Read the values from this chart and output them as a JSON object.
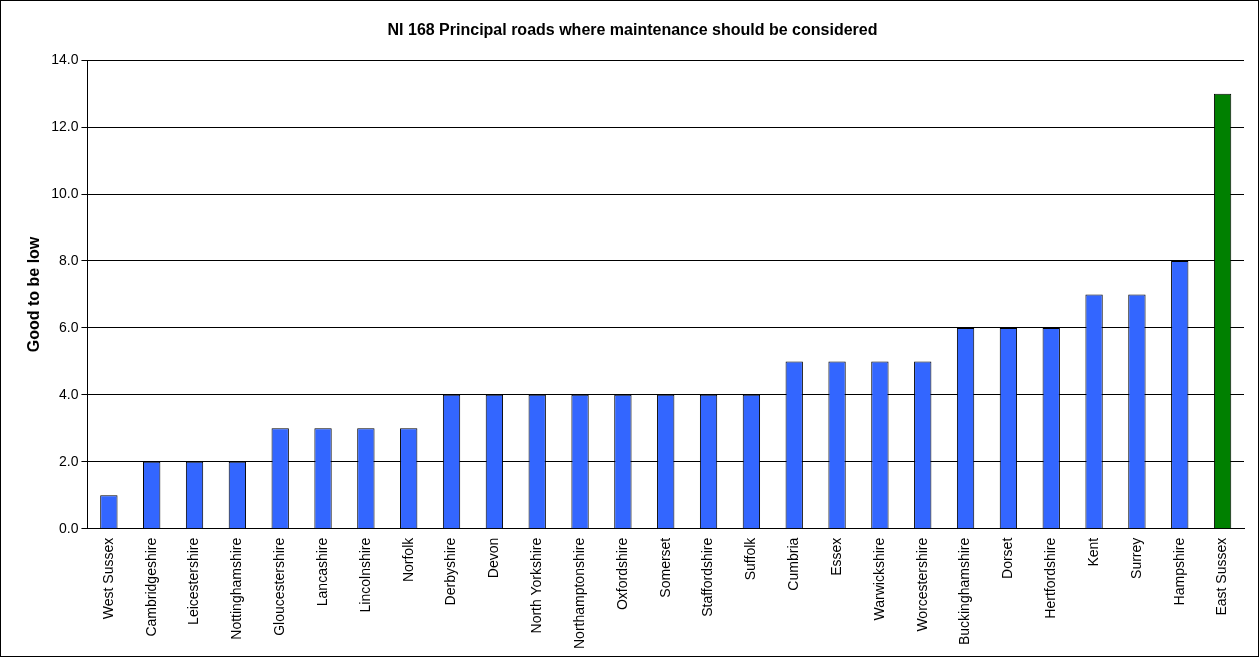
{
  "chart_data": {
    "type": "bar",
    "title": "NI 168 Principal roads where maintenance should be considered",
    "ylabel": "Good to be low",
    "categories": [
      "West Sussex",
      "Cambridgeshire",
      "Leicestershire",
      "Nottinghamshire",
      "Gloucestershire",
      "Lancashire",
      "Lincolnshire",
      "Norfolk",
      "Derbyshire",
      "Devon",
      "North Yorkshire",
      "Northamptonshire",
      "Oxfordshire",
      "Somerset",
      "Staffordshire",
      "Suffolk",
      "Cumbria",
      "Essex",
      "Warwickshire",
      "Worcestershire",
      "Buckinghamshire",
      "Dorset",
      "Hertfordshire",
      "Kent",
      "Surrey",
      "Hampshire",
      "East Sussex"
    ],
    "values": [
      1,
      2,
      2,
      2,
      3,
      3,
      3,
      3,
      4,
      4,
      4,
      4,
      4,
      4,
      4,
      4,
      5,
      5,
      5,
      5,
      6,
      6,
      6,
      7,
      7,
      8,
      13
    ],
    "colors": [
      "#3366ff",
      "#3366ff",
      "#3366ff",
      "#3366ff",
      "#3366ff",
      "#3366ff",
      "#3366ff",
      "#3366ff",
      "#3366ff",
      "#3366ff",
      "#3366ff",
      "#3366ff",
      "#3366ff",
      "#3366ff",
      "#3366ff",
      "#3366ff",
      "#3366ff",
      "#3366ff",
      "#3366ff",
      "#3366ff",
      "#3366ff",
      "#3366ff",
      "#3366ff",
      "#3366ff",
      "#3366ff",
      "#3366ff",
      "#008000"
    ],
    "ylim": [
      0,
      14
    ],
    "yticks": [
      {
        "value": 0,
        "label": "0.0"
      },
      {
        "value": 2,
        "label": "2.0"
      },
      {
        "value": 4,
        "label": "4.0"
      },
      {
        "value": 6,
        "label": "6.0"
      },
      {
        "value": 8,
        "label": "8.0"
      },
      {
        "value": 10,
        "label": "10.0"
      },
      {
        "value": 12,
        "label": "12.0"
      },
      {
        "value": 14,
        "label": "14.0"
      }
    ],
    "grid": "y",
    "legend": false
  }
}
